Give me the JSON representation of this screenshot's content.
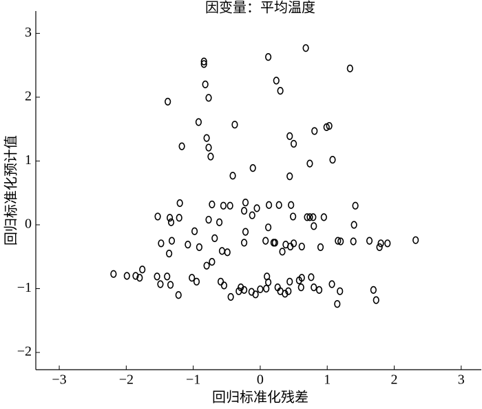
{
  "chart_data": {
    "type": "scatter",
    "title": "因变量：平均温度",
    "x_label": "回归标准化残差",
    "y_label": "回归标准化预计值",
    "marker": "open-circle",
    "color": "#000000",
    "x": [
      0.68,
      0.12,
      -0.84,
      -0.84,
      1.34,
      0.24,
      -0.82,
      0.3,
      -0.77,
      -1.38,
      -0.92,
      -0.38,
      0.99,
      1.03,
      0.81,
      0.44,
      -0.8,
      0.5,
      -1.17,
      -0.77,
      -0.74,
      1.08,
      0.74,
      -0.11,
      -0.41,
      0.44,
      -1.2,
      -0.22,
      -0.72,
      0.13,
      0.28,
      0.46,
      1.42,
      -0.55,
      -0.45,
      -0.05,
      -0.24,
      -0.12,
      -1.53,
      -1.35,
      -1.21,
      0.49,
      0.7,
      0.74,
      0.79,
      0.95,
      -0.77,
      -0.61,
      -1.33,
      0.8,
      1.4,
      0.12,
      -0.98,
      -0.22,
      -0.68,
      -1.32,
      -1.48,
      -0.24,
      0.08,
      0.2,
      0.22,
      1.16,
      1.2,
      1.39,
      1.63,
      2.32,
      1.8,
      1.9,
      1.78,
      -1.08,
      -0.91,
      0.5,
      0.38,
      0.45,
      0.62,
      0.9,
      0.33,
      -0.57,
      -0.49,
      -1.36,
      -0.72,
      -0.8,
      -1.76,
      -2.19,
      -1.99,
      -1.86,
      -1.8,
      -1.54,
      -1.39,
      0.1,
      0.76,
      -1.02,
      -0.95,
      0.62,
      0.58,
      0.44,
      0.12,
      -0.59,
      -1.49,
      -1.34,
      -0.54,
      1.07,
      -0.29,
      0.0,
      0.09,
      0.26,
      0.61,
      0.8,
      -0.24,
      -0.32,
      0.3,
      0.88,
      0.42,
      1.69,
      1.19,
      -0.13,
      0.37,
      -1.22,
      -0.07,
      -0.44,
      1.73,
      1.15
    ],
    "y": [
      2.77,
      2.63,
      2.56,
      2.52,
      2.45,
      2.26,
      2.2,
      2.1,
      1.99,
      1.93,
      1.61,
      1.57,
      1.53,
      1.55,
      1.47,
      1.39,
      1.36,
      1.27,
      1.23,
      1.21,
      1.07,
      1.02,
      0.96,
      0.89,
      0.77,
      0.76,
      0.34,
      0.35,
      0.32,
      0.31,
      0.31,
      0.31,
      0.3,
      0.3,
      0.3,
      0.26,
      0.22,
      0.15,
      0.13,
      0.11,
      0.11,
      0.13,
      0.12,
      0.12,
      0.12,
      0.12,
      0.08,
      0.04,
      0.04,
      -0.02,
      0.0,
      -0.04,
      -0.1,
      -0.11,
      -0.21,
      -0.25,
      -0.29,
      -0.28,
      -0.25,
      -0.28,
      -0.28,
      -0.25,
      -0.26,
      -0.26,
      -0.25,
      -0.24,
      -0.29,
      -0.29,
      -0.35,
      -0.31,
      -0.35,
      -0.29,
      -0.31,
      -0.34,
      -0.34,
      -0.35,
      -0.42,
      -0.41,
      -0.43,
      -0.45,
      -0.58,
      -0.64,
      -0.7,
      -0.77,
      -0.8,
      -0.8,
      -0.83,
      -0.81,
      -0.81,
      -0.81,
      -0.82,
      -0.83,
      -0.89,
      -0.83,
      -0.87,
      -0.89,
      -0.9,
      -0.89,
      -0.93,
      -0.94,
      -0.95,
      -0.93,
      -0.98,
      -1.01,
      -1.0,
      -0.98,
      -0.98,
      -0.98,
      -1.02,
      -1.04,
      -1.04,
      -1.02,
      -1.04,
      -1.02,
      -1.04,
      -1.05,
      -1.08,
      -1.1,
      -1.09,
      -1.13,
      -1.18,
      -1.24
    ],
    "xlim": [
      -3.35,
      3.3
    ],
    "xticks": [
      {
        "value": -3,
        "label": "−3"
      },
      {
        "value": -2,
        "label": "−2"
      },
      {
        "value": -1,
        "label": "−1"
      },
      0,
      1,
      2,
      3
    ],
    "ylim": [
      -2.27,
      3.35
    ],
    "yticks": [
      {
        "value": -2,
        "label": "−2"
      },
      {
        "value": -1,
        "label": "−1"
      },
      0,
      1,
      2,
      3
    ],
    "grid": false
  }
}
